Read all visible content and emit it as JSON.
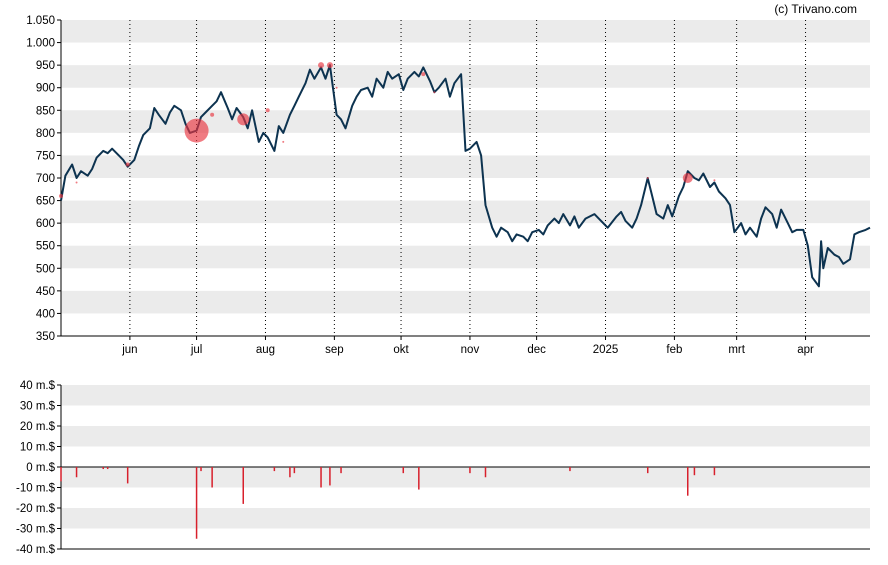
{
  "credit": "(c) Trivano.com",
  "colors": {
    "background": "#ffffff",
    "band": "#ebebeb",
    "price_line": "#0d3350",
    "marker": "#e8343f",
    "bar": "#d8202c",
    "axis": "#000000"
  },
  "chart_data": [
    {
      "type": "line",
      "title": "",
      "ylim": [
        350,
        1050
      ],
      "y_ticks": [
        "350",
        "400",
        "450",
        "500",
        "550",
        "600",
        "650",
        "700",
        "750",
        "800",
        "850",
        "900",
        "950",
        "1.000",
        "1.050"
      ],
      "y_tick_values": [
        350,
        400,
        450,
        500,
        550,
        600,
        650,
        700,
        750,
        800,
        850,
        900,
        950,
        1000,
        1050
      ],
      "x_range": [
        "2024-05-01",
        "2025-04-30"
      ],
      "x_ticks": [
        {
          "label": "jun",
          "date": "2024-06-01"
        },
        {
          "label": "jul",
          "date": "2024-07-01"
        },
        {
          "label": "aug",
          "date": "2024-08-01"
        },
        {
          "label": "sep",
          "date": "2024-09-01"
        },
        {
          "label": "okt",
          "date": "2024-10-01"
        },
        {
          "label": "nov",
          "date": "2024-11-01"
        },
        {
          "label": "dec",
          "date": "2024-12-01"
        },
        {
          "label": "2025",
          "date": "2025-01-01"
        },
        {
          "label": "feb",
          "date": "2025-02-01"
        },
        {
          "label": "mrt",
          "date": "2025-03-01"
        },
        {
          "label": "apr",
          "date": "2025-04-01"
        }
      ],
      "grid": "alternating horizontal bands, dotted vertical month lines",
      "series": [
        {
          "values": [
            {
              "x": "2024-05-01",
              "y": 650
            },
            {
              "x": "2024-05-03",
              "y": 705
            },
            {
              "x": "2024-05-06",
              "y": 730
            },
            {
              "x": "2024-05-08",
              "y": 700
            },
            {
              "x": "2024-05-10",
              "y": 715
            },
            {
              "x": "2024-05-13",
              "y": 705
            },
            {
              "x": "2024-05-15",
              "y": 720
            },
            {
              "x": "2024-05-17",
              "y": 745
            },
            {
              "x": "2024-05-20",
              "y": 760
            },
            {
              "x": "2024-05-22",
              "y": 755
            },
            {
              "x": "2024-05-24",
              "y": 765
            },
            {
              "x": "2024-05-27",
              "y": 750
            },
            {
              "x": "2024-05-29",
              "y": 740
            },
            {
              "x": "2024-05-31",
              "y": 725
            },
            {
              "x": "2024-06-03",
              "y": 740
            },
            {
              "x": "2024-06-05",
              "y": 770
            },
            {
              "x": "2024-06-07",
              "y": 795
            },
            {
              "x": "2024-06-10",
              "y": 810
            },
            {
              "x": "2024-06-12",
              "y": 855
            },
            {
              "x": "2024-06-14",
              "y": 840
            },
            {
              "x": "2024-06-17",
              "y": 820
            },
            {
              "x": "2024-06-19",
              "y": 845
            },
            {
              "x": "2024-06-21",
              "y": 860
            },
            {
              "x": "2024-06-24",
              "y": 850
            },
            {
              "x": "2024-06-26",
              "y": 820
            },
            {
              "x": "2024-06-28",
              "y": 800
            },
            {
              "x": "2024-07-01",
              "y": 805
            },
            {
              "x": "2024-07-03",
              "y": 835
            },
            {
              "x": "2024-07-05",
              "y": 845
            },
            {
              "x": "2024-07-08",
              "y": 860
            },
            {
              "x": "2024-07-10",
              "y": 870
            },
            {
              "x": "2024-07-12",
              "y": 890
            },
            {
              "x": "2024-07-15",
              "y": 855
            },
            {
              "x": "2024-07-17",
              "y": 830
            },
            {
              "x": "2024-07-19",
              "y": 855
            },
            {
              "x": "2024-07-22",
              "y": 835
            },
            {
              "x": "2024-07-24",
              "y": 810
            },
            {
              "x": "2024-07-26",
              "y": 850
            },
            {
              "x": "2024-07-29",
              "y": 780
            },
            {
              "x": "2024-07-31",
              "y": 800
            },
            {
              "x": "2024-08-02",
              "y": 790
            },
            {
              "x": "2024-08-05",
              "y": 760
            },
            {
              "x": "2024-08-07",
              "y": 815
            },
            {
              "x": "2024-08-09",
              "y": 800
            },
            {
              "x": "2024-08-12",
              "y": 840
            },
            {
              "x": "2024-08-14",
              "y": 860
            },
            {
              "x": "2024-08-16",
              "y": 880
            },
            {
              "x": "2024-08-19",
              "y": 910
            },
            {
              "x": "2024-08-21",
              "y": 940
            },
            {
              "x": "2024-08-23",
              "y": 920
            },
            {
              "x": "2024-08-26",
              "y": 945
            },
            {
              "x": "2024-08-28",
              "y": 920
            },
            {
              "x": "2024-08-30",
              "y": 950
            },
            {
              "x": "2024-09-02",
              "y": 840
            },
            {
              "x": "2024-09-04",
              "y": 830
            },
            {
              "x": "2024-09-06",
              "y": 810
            },
            {
              "x": "2024-09-09",
              "y": 860
            },
            {
              "x": "2024-09-11",
              "y": 880
            },
            {
              "x": "2024-09-13",
              "y": 895
            },
            {
              "x": "2024-09-16",
              "y": 900
            },
            {
              "x": "2024-09-18",
              "y": 880
            },
            {
              "x": "2024-09-20",
              "y": 920
            },
            {
              "x": "2024-09-23",
              "y": 900
            },
            {
              "x": "2024-09-25",
              "y": 935
            },
            {
              "x": "2024-09-27",
              "y": 920
            },
            {
              "x": "2024-09-30",
              "y": 930
            },
            {
              "x": "2024-10-02",
              "y": 895
            },
            {
              "x": "2024-10-04",
              "y": 920
            },
            {
              "x": "2024-10-07",
              "y": 935
            },
            {
              "x": "2024-10-09",
              "y": 925
            },
            {
              "x": "2024-10-11",
              "y": 945
            },
            {
              "x": "2024-10-14",
              "y": 915
            },
            {
              "x": "2024-10-16",
              "y": 890
            },
            {
              "x": "2024-10-18",
              "y": 900
            },
            {
              "x": "2024-10-21",
              "y": 920
            },
            {
              "x": "2024-10-23",
              "y": 880
            },
            {
              "x": "2024-10-25",
              "y": 910
            },
            {
              "x": "2024-10-28",
              "y": 930
            },
            {
              "x": "2024-10-30",
              "y": 760
            },
            {
              "x": "2024-11-01",
              "y": 765
            },
            {
              "x": "2024-11-04",
              "y": 780
            },
            {
              "x": "2024-11-06",
              "y": 750
            },
            {
              "x": "2024-11-08",
              "y": 640
            },
            {
              "x": "2024-11-11",
              "y": 590
            },
            {
              "x": "2024-11-13",
              "y": 570
            },
            {
              "x": "2024-11-15",
              "y": 590
            },
            {
              "x": "2024-11-18",
              "y": 580
            },
            {
              "x": "2024-11-20",
              "y": 560
            },
            {
              "x": "2024-11-22",
              "y": 575
            },
            {
              "x": "2024-11-25",
              "y": 570
            },
            {
              "x": "2024-11-27",
              "y": 560
            },
            {
              "x": "2024-11-29",
              "y": 580
            },
            {
              "x": "2024-12-02",
              "y": 585
            },
            {
              "x": "2024-12-04",
              "y": 575
            },
            {
              "x": "2024-12-06",
              "y": 595
            },
            {
              "x": "2024-12-09",
              "y": 610
            },
            {
              "x": "2024-12-11",
              "y": 600
            },
            {
              "x": "2024-12-13",
              "y": 620
            },
            {
              "x": "2024-12-16",
              "y": 595
            },
            {
              "x": "2024-12-18",
              "y": 615
            },
            {
              "x": "2024-12-20",
              "y": 590
            },
            {
              "x": "2024-12-23",
              "y": 610
            },
            {
              "x": "2024-12-27",
              "y": 620
            },
            {
              "x": "2024-12-30",
              "y": 605
            },
            {
              "x": "2025-01-02",
              "y": 590
            },
            {
              "x": "2025-01-06",
              "y": 615
            },
            {
              "x": "2025-01-08",
              "y": 625
            },
            {
              "x": "2025-01-10",
              "y": 605
            },
            {
              "x": "2025-01-13",
              "y": 590
            },
            {
              "x": "2025-01-15",
              "y": 610
            },
            {
              "x": "2025-01-17",
              "y": 640
            },
            {
              "x": "2025-01-20",
              "y": 700
            },
            {
              "x": "2025-01-22",
              "y": 660
            },
            {
              "x": "2025-01-24",
              "y": 620
            },
            {
              "x": "2025-01-27",
              "y": 610
            },
            {
              "x": "2025-01-29",
              "y": 640
            },
            {
              "x": "2025-01-31",
              "y": 615
            },
            {
              "x": "2025-02-03",
              "y": 660
            },
            {
              "x": "2025-02-05",
              "y": 680
            },
            {
              "x": "2025-02-07",
              "y": 715
            },
            {
              "x": "2025-02-10",
              "y": 700
            },
            {
              "x": "2025-02-12",
              "y": 695
            },
            {
              "x": "2025-02-14",
              "y": 710
            },
            {
              "x": "2025-02-17",
              "y": 680
            },
            {
              "x": "2025-02-19",
              "y": 690
            },
            {
              "x": "2025-02-21",
              "y": 670
            },
            {
              "x": "2025-02-24",
              "y": 655
            },
            {
              "x": "2025-02-26",
              "y": 640
            },
            {
              "x": "2025-02-28",
              "y": 580
            },
            {
              "x": "2025-03-03",
              "y": 600
            },
            {
              "x": "2025-03-05",
              "y": 575
            },
            {
              "x": "2025-03-07",
              "y": 590
            },
            {
              "x": "2025-03-10",
              "y": 570
            },
            {
              "x": "2025-03-12",
              "y": 610
            },
            {
              "x": "2025-03-14",
              "y": 635
            },
            {
              "x": "2025-03-17",
              "y": 620
            },
            {
              "x": "2025-03-19",
              "y": 590
            },
            {
              "x": "2025-03-21",
              "y": 630
            },
            {
              "x": "2025-03-24",
              "y": 600
            },
            {
              "x": "2025-03-26",
              "y": 580
            },
            {
              "x": "2025-03-28",
              "y": 585
            },
            {
              "x": "2025-03-31",
              "y": 585
            },
            {
              "x": "2025-04-02",
              "y": 550
            },
            {
              "x": "2025-04-04",
              "y": 480
            },
            {
              "x": "2025-04-07",
              "y": 460
            },
            {
              "x": "2025-04-08",
              "y": 560
            },
            {
              "x": "2025-04-09",
              "y": 500
            },
            {
              "x": "2025-04-11",
              "y": 545
            },
            {
              "x": "2025-04-14",
              "y": 530
            },
            {
              "x": "2025-04-16",
              "y": 525
            },
            {
              "x": "2025-04-18",
              "y": 510
            },
            {
              "x": "2025-04-21",
              "y": 520
            },
            {
              "x": "2025-04-23",
              "y": 575
            },
            {
              "x": "2025-04-25",
              "y": 580
            },
            {
              "x": "2025-04-28",
              "y": 585
            },
            {
              "x": "2025-04-30",
              "y": 590
            }
          ]
        }
      ],
      "markers": [
        {
          "x": "2024-05-01",
          "y": 660,
          "size": 2
        },
        {
          "x": "2024-05-08",
          "y": 690,
          "size": 1
        },
        {
          "x": "2024-05-31",
          "y": 730,
          "size": 2
        },
        {
          "x": "2024-07-01",
          "y": 805,
          "size": 12
        },
        {
          "x": "2024-07-08",
          "y": 840,
          "size": 2
        },
        {
          "x": "2024-07-22",
          "y": 830,
          "size": 6
        },
        {
          "x": "2024-08-02",
          "y": 850,
          "size": 2
        },
        {
          "x": "2024-08-09",
          "y": 780,
          "size": 1
        },
        {
          "x": "2024-08-26",
          "y": 950,
          "size": 3
        },
        {
          "x": "2024-08-30",
          "y": 950,
          "size": 3
        },
        {
          "x": "2024-09-02",
          "y": 900,
          "size": 1
        },
        {
          "x": "2024-10-11",
          "y": 930,
          "size": 2
        },
        {
          "x": "2024-10-16",
          "y": 890,
          "size": 1
        },
        {
          "x": "2025-01-20",
          "y": 700,
          "size": 1
        },
        {
          "x": "2025-02-07",
          "y": 700,
          "size": 5
        },
        {
          "x": "2025-02-19",
          "y": 695,
          "size": 1
        }
      ]
    },
    {
      "type": "bar",
      "title": "",
      "ylim": [
        -40,
        40
      ],
      "y_ticks": [
        "40 m.$",
        "30 m.$",
        "20 m.$",
        "10 m.$",
        "0 m.$",
        "-10 m.$",
        "-20 m.$",
        "-30 m.$",
        "-40 m.$"
      ],
      "y_tick_values": [
        40,
        30,
        20,
        10,
        0,
        -10,
        -20,
        -30,
        -40
      ],
      "x_range": [
        "2024-05-01",
        "2025-04-30"
      ],
      "grid": "alternating horizontal bands",
      "values": [
        {
          "x": "2024-05-01",
          "y": -7
        },
        {
          "x": "2024-05-08",
          "y": -5
        },
        {
          "x": "2024-05-20",
          "y": -1
        },
        {
          "x": "2024-05-22",
          "y": -1
        },
        {
          "x": "2024-05-31",
          "y": -8
        },
        {
          "x": "2024-07-01",
          "y": -35
        },
        {
          "x": "2024-07-03",
          "y": -2
        },
        {
          "x": "2024-07-08",
          "y": -10
        },
        {
          "x": "2024-07-22",
          "y": -18
        },
        {
          "x": "2024-08-05",
          "y": -2
        },
        {
          "x": "2024-08-12",
          "y": -5
        },
        {
          "x": "2024-08-14",
          "y": -3
        },
        {
          "x": "2024-08-26",
          "y": -10
        },
        {
          "x": "2024-08-30",
          "y": -9
        },
        {
          "x": "2024-09-04",
          "y": -3
        },
        {
          "x": "2024-10-02",
          "y": -3
        },
        {
          "x": "2024-10-09",
          "y": -11
        },
        {
          "x": "2024-11-01",
          "y": -3
        },
        {
          "x": "2024-11-08",
          "y": -5
        },
        {
          "x": "2024-12-16",
          "y": -2
        },
        {
          "x": "2025-01-20",
          "y": -3
        },
        {
          "x": "2025-02-07",
          "y": -14
        },
        {
          "x": "2025-02-10",
          "y": -4
        },
        {
          "x": "2025-02-19",
          "y": -4
        }
      ]
    }
  ]
}
